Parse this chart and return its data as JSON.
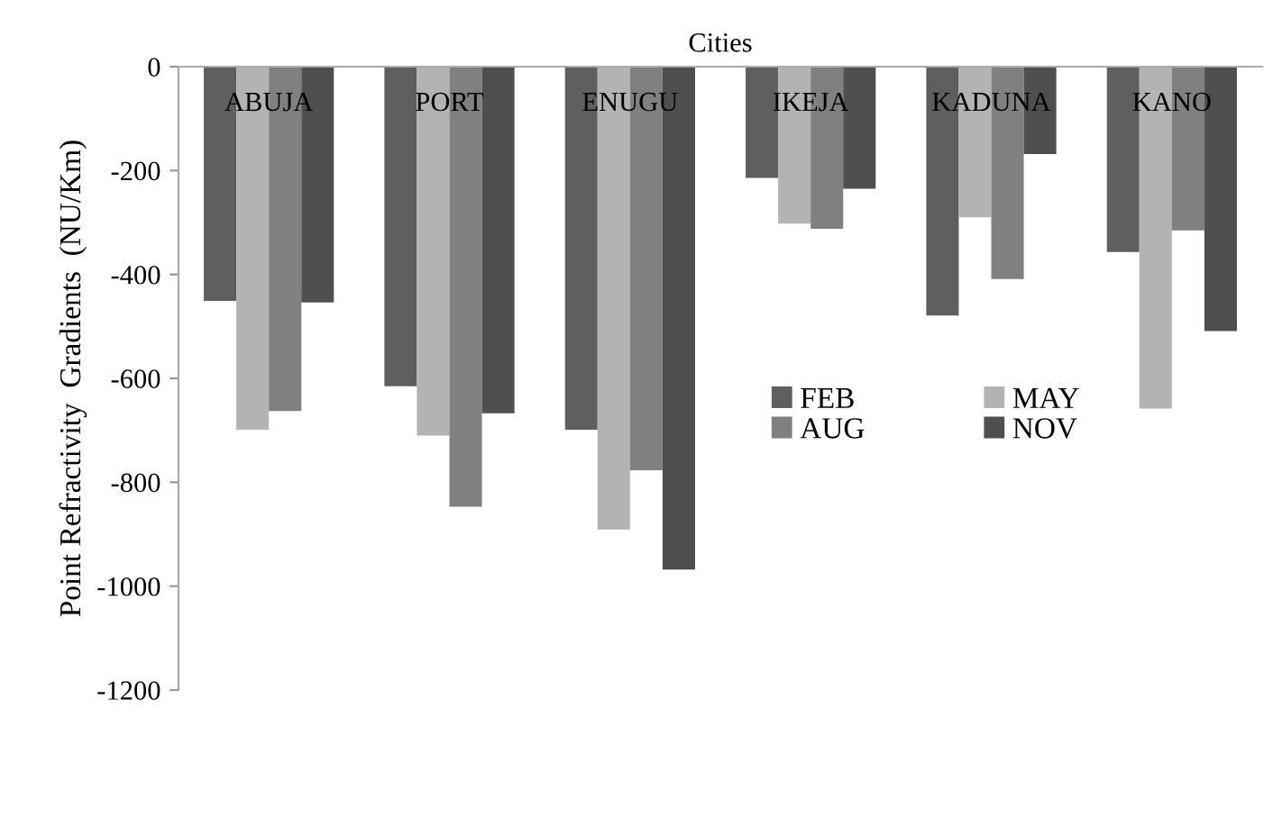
{
  "chart_data": {
    "type": "bar",
    "xlabel": "Cities",
    "ylabel": "Point Refractivity  Gradients  (NU/Km)",
    "categories": [
      "ABUJA",
      "PORT",
      "ENUGU",
      "IKEJA",
      "KADUNA",
      "KANO"
    ],
    "series": [
      {
        "name": "FEB",
        "color": "#5f5f5f",
        "values": [
          -451,
          -615,
          -699,
          -214,
          -479,
          -357
        ]
      },
      {
        "name": "MAY",
        "color": "#b3b3b3",
        "values": [
          -699,
          -710,
          -891,
          -302,
          -290,
          -658
        ]
      },
      {
        "name": "AUG",
        "color": "#808080",
        "values": [
          -663,
          -847,
          -777,
          -312,
          -409,
          -315
        ]
      },
      {
        "name": "NOV",
        "color": "#4f4f4f",
        "values": [
          -454,
          -667,
          -968,
          -235,
          -168,
          -509
        ]
      }
    ],
    "ylim": [
      -1200,
      0
    ],
    "yticks": [
      -1200,
      -1000,
      -800,
      -600,
      -400,
      -200,
      0
    ],
    "grid": false,
    "legend": "center"
  }
}
